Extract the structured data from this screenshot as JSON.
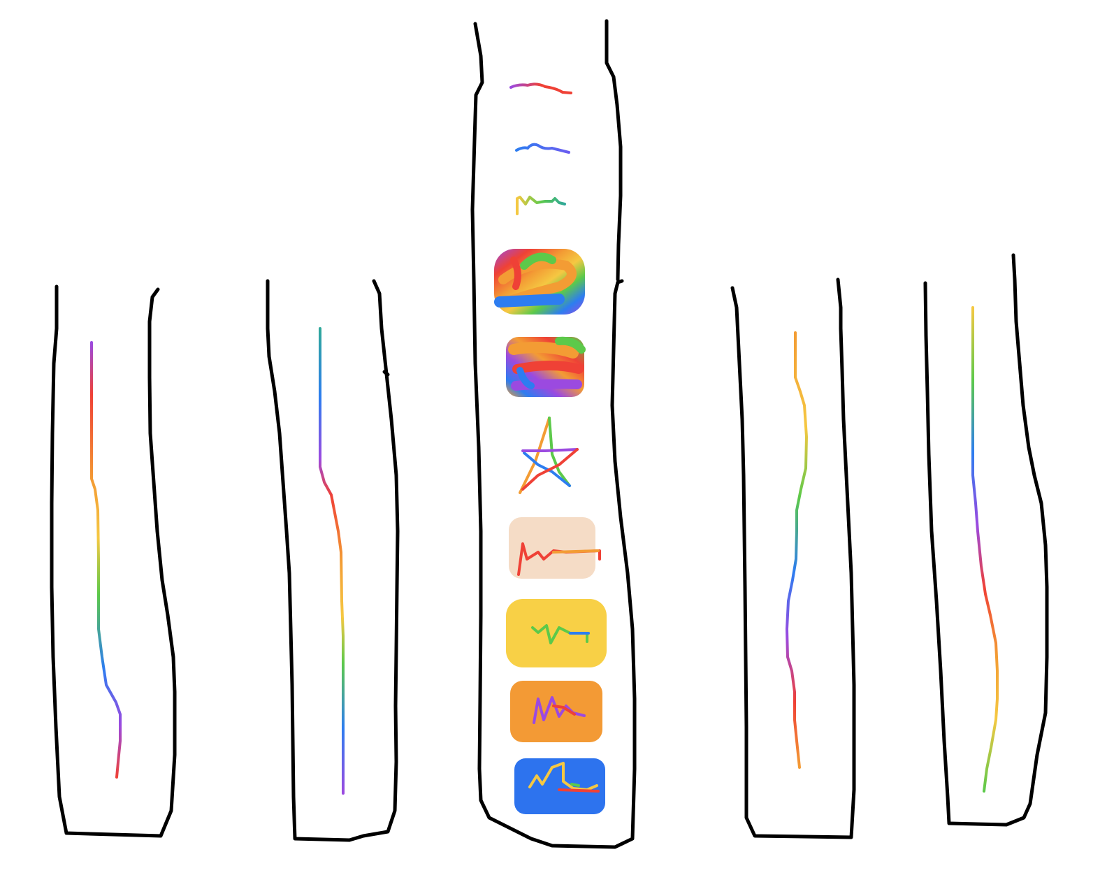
{
  "drawing": {
    "background": "#ffffff",
    "outline_color": "#000000",
    "palette": {
      "purple": "#9b4ae0",
      "red": "#ef4136",
      "orange": "#f39c34",
      "yellow": "#f5c842",
      "green": "#5cc94a",
      "teal": "#2fa89a",
      "blue": "#2d7df0",
      "peach": "#f5dcc6",
      "card_yellow": "#f8d046",
      "card_orange": "#f39a35",
      "card_blue": "#2d73ee"
    },
    "columns": [
      {
        "name": "outer-left",
        "stroke_order": [
          "purple",
          "red",
          "orange",
          "yellow",
          "green",
          "blue",
          "purple",
          "red"
        ]
      },
      {
        "name": "inner-left",
        "stroke_order": [
          "teal",
          "blue",
          "purple",
          "red",
          "orange",
          "yellow",
          "green",
          "blue",
          "purple"
        ]
      },
      {
        "name": "center",
        "strokes": [
          "wave-purple-red",
          "wave-blue",
          "scribble-yellow-green-teal",
          "blob-rainbow",
          "blob-rainbow-2",
          "star-rainbow",
          "card-peach",
          "card-yellow",
          "card-orange",
          "card-blue"
        ]
      },
      {
        "name": "inner-right",
        "stroke_order": [
          "orange",
          "yellow",
          "green",
          "blue",
          "purple",
          "red",
          "orange"
        ]
      },
      {
        "name": "outer-right",
        "stroke_order": [
          "yellow",
          "green",
          "blue",
          "purple",
          "red",
          "orange",
          "yellow",
          "green"
        ]
      }
    ]
  }
}
